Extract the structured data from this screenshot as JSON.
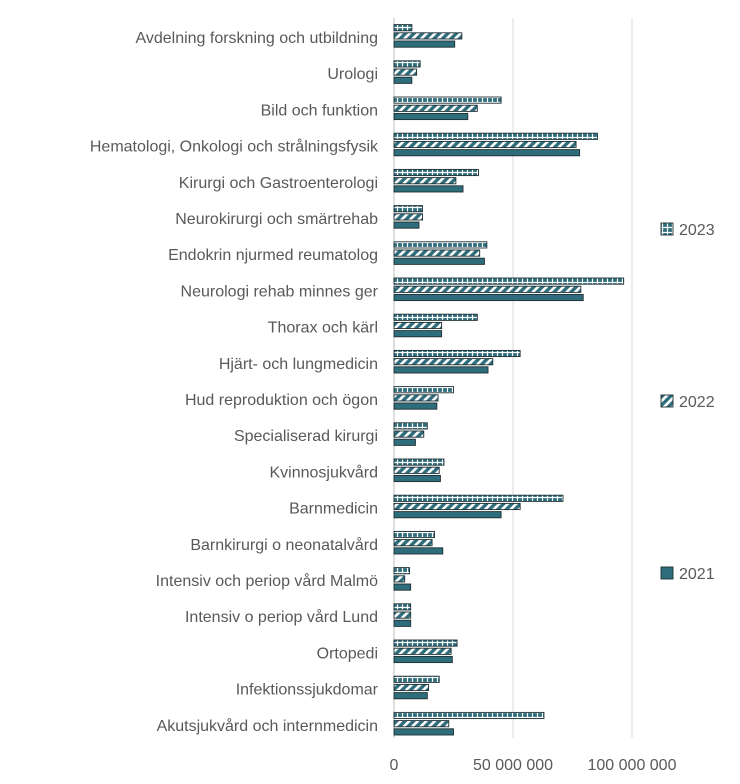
{
  "chart_data": {
    "type": "bar",
    "orientation": "horizontal",
    "categories": [
      "Avdelning forskning och utbildning",
      "Urologi",
      "Bild och funktion",
      "Hematologi, Onkologi och strålningsfysik",
      "Kirurgi och Gastroenterologi",
      "Neurokirurgi och smärtrehab",
      "Endokrin njurmed reumatolog",
      "Neurologi rehab minnes ger",
      "Thorax och kärl",
      "Hjärt- och lungmedicin",
      "Hud reproduktion och ögon",
      "Specialiserad kirurgi",
      "Kvinnosjukvård",
      "Barnmedicin",
      "Barnkirurgi o neonatalvård",
      "Intensiv och periop vård Malmö",
      "Intensiv o periop vård Lund",
      "Ortopedi",
      "Infektionssjukdomar",
      "Akutsjukvård och internmedicin"
    ],
    "series": [
      {
        "name": "2023",
        "pattern": "cross",
        "values": [
          7500000,
          11000000,
          45000000,
          85500000,
          35500000,
          12000000,
          39000000,
          96500000,
          35000000,
          53000000,
          25000000,
          14000000,
          21000000,
          71000000,
          17000000,
          6500000,
          7000000,
          26500000,
          19000000,
          63000000
        ]
      },
      {
        "name": "2022",
        "pattern": "diagonal",
        "values": [
          28500000,
          9500000,
          35000000,
          76500000,
          26000000,
          12000000,
          36000000,
          78500000,
          20000000,
          41500000,
          18500000,
          12500000,
          19000000,
          53000000,
          16000000,
          4500000,
          7000000,
          24000000,
          14500000,
          23000000
        ]
      },
      {
        "name": "2021",
        "pattern": "solid",
        "values": [
          25500000,
          7500000,
          31000000,
          78000000,
          29000000,
          10500000,
          38000000,
          79500000,
          20000000,
          39500000,
          18000000,
          9000000,
          19500000,
          45000000,
          20500000,
          7000000,
          7000000,
          24500000,
          14000000,
          25000000
        ]
      }
    ],
    "x_ticks": [
      "0",
      "50 000 000",
      "100 000 000"
    ],
    "xlim": [
      0,
      120000000
    ],
    "grid": "vertical",
    "legend": "right",
    "colors": {
      "bar_fill": "#2e6d7c",
      "bar_edge": "#1f2f33",
      "pattern_light": "#ffffff",
      "grid": "#d9d9d9",
      "text": "#595959"
    }
  }
}
